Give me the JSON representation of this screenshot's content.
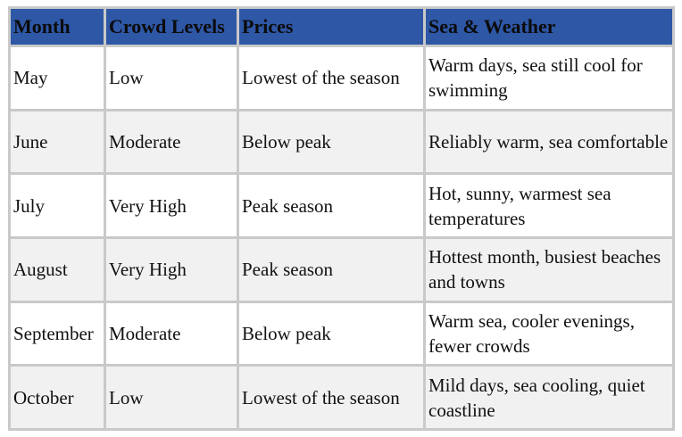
{
  "table": {
    "headers": [
      "Month",
      "Crowd Levels",
      "Prices",
      "Sea & Weather"
    ],
    "rows": [
      {
        "month": "May",
        "crowd": "Low",
        "prices": "Lowest of the season",
        "weather": "Warm days, sea still cool for swimming"
      },
      {
        "month": "June",
        "crowd": "Moderate",
        "prices": "Below peak",
        "weather": "Reliably warm, sea comfortable"
      },
      {
        "month": "July",
        "crowd": "Very High",
        "prices": "Peak season",
        "weather": "Hot, sunny, warmest sea temperatures"
      },
      {
        "month": "August",
        "crowd": "Very High",
        "prices": "Peak season",
        "weather": "Hottest month, busiest beaches and towns"
      },
      {
        "month": "September",
        "crowd": "Moderate",
        "prices": "Below peak",
        "weather": "Warm sea, cooler evenings, fewer crowds"
      },
      {
        "month": "October",
        "crowd": "Low",
        "prices": "Lowest of the season",
        "weather": "Mild days, sea cooling, quiet coastline"
      }
    ]
  },
  "colors": {
    "header_bg": "#2e57a6",
    "grid": "#c9c9c9",
    "row_alt": "#f1f1f1"
  }
}
